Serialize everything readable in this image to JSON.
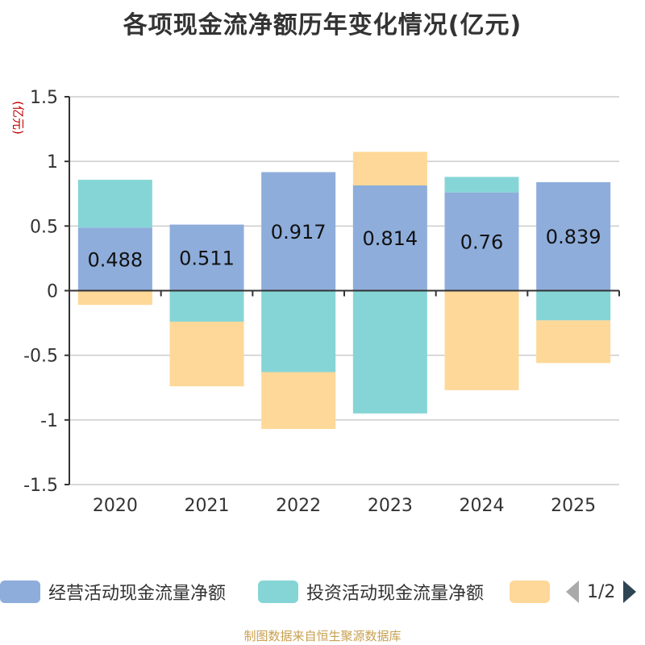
{
  "title": "各项现金流净额历年变化情况(亿元)",
  "unit_label": "(亿元)",
  "legend": {
    "items": [
      "经营活动现金流量净额",
      "投资活动现金流量净额",
      ""
    ],
    "page_indicator": "1/2"
  },
  "footer": "制图数据来自恒生聚源数据库",
  "colors": {
    "operating": "#8eaddb",
    "investing": "#86d5d6",
    "financing": "#fed898",
    "axis": "#333333",
    "grid": "#cccccc",
    "unit": "#c00000",
    "footer": "#c8a050"
  },
  "chart_data": {
    "type": "bar",
    "stacked": true,
    "title": "各项现金流净额历年变化情况(亿元)",
    "ylabel": "(亿元)",
    "ylim": [
      -1.5,
      1.5
    ],
    "yticks": [
      -1.5,
      -1,
      -0.5,
      0,
      0.5,
      1,
      1.5
    ],
    "ytick_labels": [
      "-1.5",
      "-1",
      "-0.5",
      "0",
      "0.5",
      "1",
      "1.5"
    ],
    "categories": [
      "2020",
      "2021",
      "2022",
      "2023",
      "2024",
      "2025"
    ],
    "series": [
      {
        "name": "经营活动现金流量净额",
        "color": "#8eaddb",
        "values": [
          0.488,
          0.511,
          0.917,
          0.814,
          0.76,
          0.839
        ],
        "labels": [
          "0.488",
          "0.511",
          "0.917",
          "0.814",
          "0.76",
          "0.839"
        ]
      },
      {
        "name": "投资活动现金流量净额",
        "color": "#86d5d6",
        "values": [
          0.37,
          -0.24,
          -0.63,
          -0.95,
          0.12,
          -0.23
        ]
      },
      {
        "name": "",
        "color": "#fed898",
        "values": [
          -0.11,
          -0.5,
          -0.44,
          0.26,
          -0.77,
          -0.33
        ]
      }
    ],
    "legend_position": "bottom",
    "grid": true
  }
}
